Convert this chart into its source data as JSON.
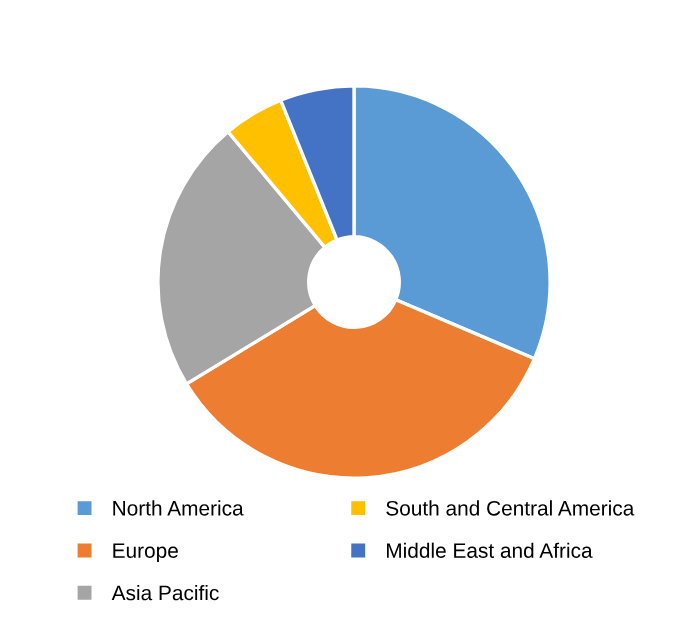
{
  "chart_data": {
    "type": "donut",
    "categories": [
      "North America",
      "Europe",
      "Asia Pacific",
      "South and Central America",
      "Middle East and Africa"
    ],
    "values": [
      31.4,
      34.9,
      22.6,
      5.0,
      6.1
    ],
    "colors": [
      "#5b9bd5",
      "#ed7d31",
      "#a5a5a5",
      "#ffc000",
      "#4472c4"
    ],
    "legend": "bottom"
  }
}
